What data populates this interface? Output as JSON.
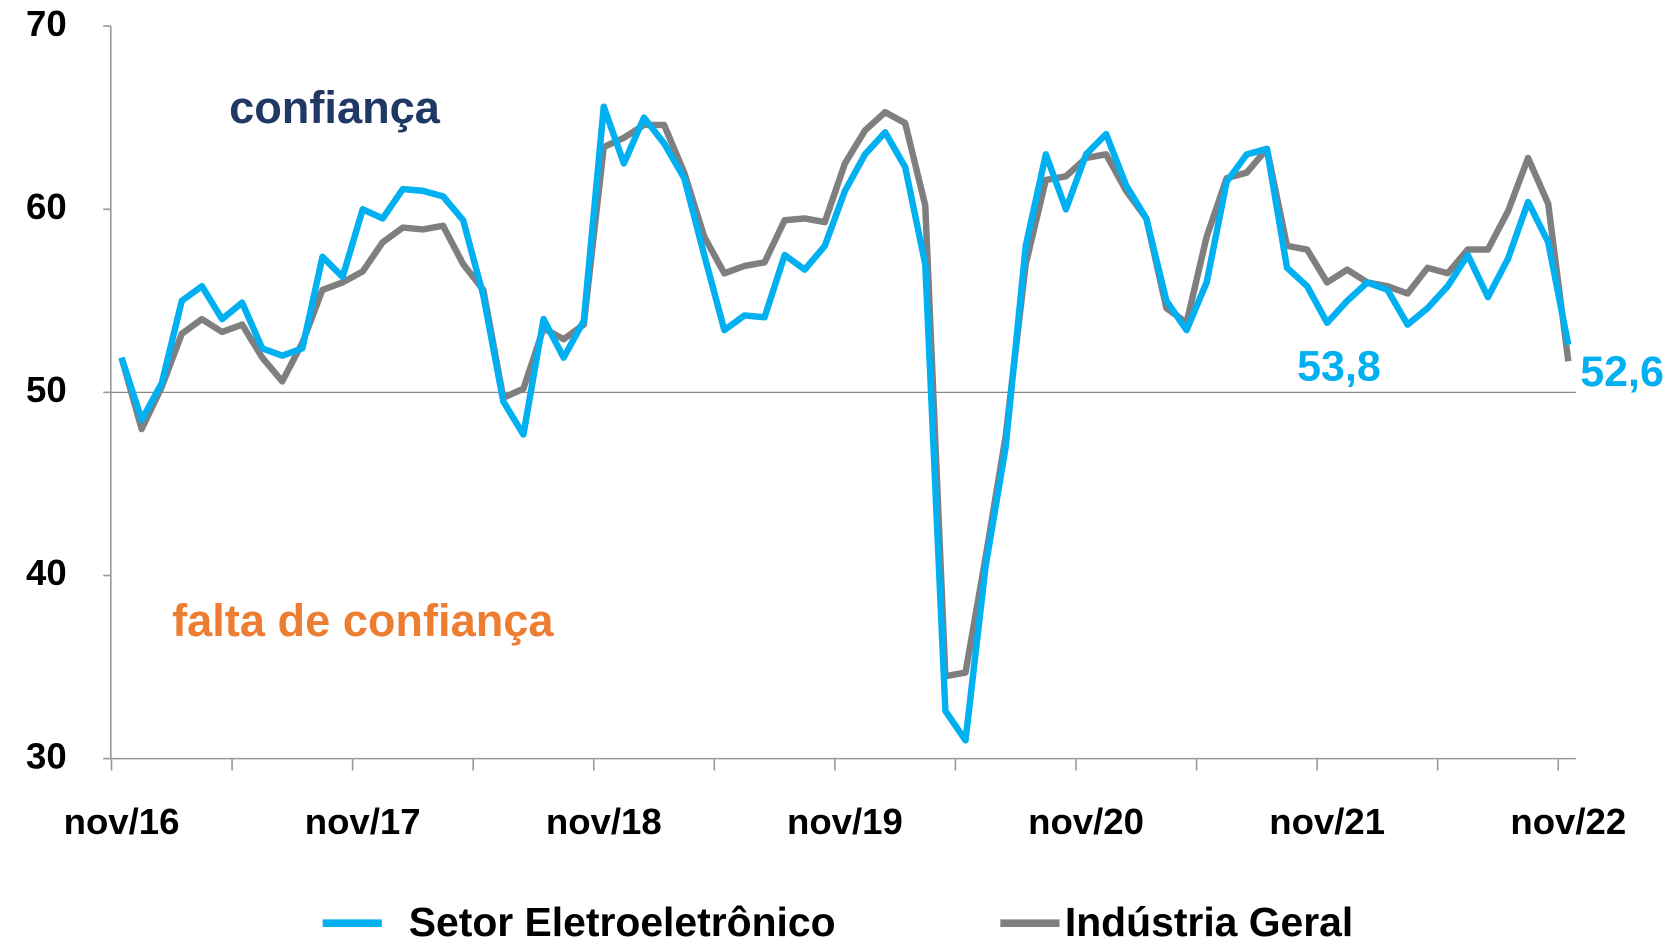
{
  "chart_data": {
    "type": "line",
    "annotations": [
      "confiança",
      "falta de confiança"
    ],
    "categories": [
      "nov/16",
      null,
      null,
      null,
      null,
      null,
      null,
      null,
      null,
      null,
      null,
      null,
      "nov/17",
      null,
      null,
      null,
      null,
      null,
      null,
      null,
      null,
      null,
      null,
      null,
      "nov/18",
      null,
      null,
      null,
      null,
      null,
      null,
      null,
      null,
      null,
      null,
      null,
      "nov/19",
      null,
      null,
      null,
      null,
      null,
      null,
      null,
      null,
      null,
      null,
      null,
      "nov/20",
      null,
      null,
      null,
      null,
      null,
      null,
      null,
      null,
      null,
      null,
      null,
      "nov/21",
      null,
      null,
      null,
      null,
      null,
      null,
      null,
      null,
      null,
      null,
      null,
      "nov/22"
    ],
    "series": [
      {
        "name": "Setor Eletroeletrônico",
        "color": "#00b0f0",
        "values": [
          51.9,
          48.5,
          50.5,
          55.0,
          55.8,
          54.0,
          54.9,
          52.4,
          52.0,
          52.4,
          57.4,
          56.3,
          60.0,
          59.5,
          61.1,
          61.0,
          60.7,
          59.4,
          55.3,
          49.5,
          47.7,
          54.0,
          51.9,
          53.9,
          65.6,
          62.5,
          65.0,
          63.6,
          61.7,
          57.5,
          53.4,
          54.2,
          54.1,
          57.5,
          56.7,
          58.0,
          61.0,
          63.0,
          64.2,
          62.3,
          57.0,
          32.6,
          31.0,
          40.5,
          47.0,
          58.0,
          63.0,
          60.0,
          63.0,
          64.1,
          61.3,
          59.5,
          55.0,
          53.4,
          56.0,
          61.5,
          63.0,
          63.3,
          56.8,
          55.8,
          53.8,
          55.0,
          56.0,
          55.6,
          53.7,
          54.6,
          55.8,
          57.5,
          55.2,
          57.3,
          60.4,
          58.2,
          52.6
        ],
        "value_labels": [
          null,
          null,
          null,
          null,
          null,
          null,
          null,
          null,
          null,
          null,
          null,
          null,
          null,
          null,
          null,
          null,
          null,
          null,
          null,
          null,
          null,
          null,
          null,
          null,
          null,
          null,
          null,
          null,
          null,
          null,
          null,
          null,
          null,
          null,
          null,
          null,
          null,
          null,
          null,
          null,
          null,
          null,
          null,
          null,
          null,
          null,
          null,
          null,
          null,
          null,
          null,
          null,
          null,
          null,
          null,
          null,
          null,
          null,
          null,
          null,
          "53,8",
          null,
          null,
          null,
          null,
          null,
          null,
          null,
          null,
          null,
          null,
          null,
          "52,6"
        ]
      },
      {
        "name": "Indústria Geral",
        "color": "#7f7f7f",
        "values": [
          51.9,
          48.0,
          50.3,
          53.2,
          54.0,
          53.3,
          53.7,
          51.9,
          50.6,
          52.7,
          55.6,
          56.0,
          56.6,
          58.2,
          59.0,
          58.9,
          59.1,
          57.0,
          55.6,
          49.7,
          50.2,
          53.5,
          52.9,
          53.7,
          63.4,
          63.9,
          64.6,
          64.6,
          62.0,
          58.5,
          56.5,
          56.9,
          57.1,
          59.4,
          59.5,
          59.3,
          62.5,
          64.3,
          65.3,
          64.7,
          60.2,
          34.5,
          34.7,
          41.0,
          47.6,
          57.0,
          61.6,
          61.8,
          62.8,
          63.0,
          61.0,
          59.5,
          54.6,
          53.8,
          58.5,
          61.7,
          62.0,
          63.3,
          58.0,
          57.8,
          56.0,
          56.7,
          56.0,
          55.8,
          55.4,
          56.8,
          56.5,
          57.8,
          57.8,
          59.9,
          62.8,
          60.3,
          51.7
        ]
      }
    ],
    "ylim": [
      30,
      70
    ],
    "yticks": [
      30,
      40,
      50,
      60,
      70
    ],
    "hline": 50
  }
}
